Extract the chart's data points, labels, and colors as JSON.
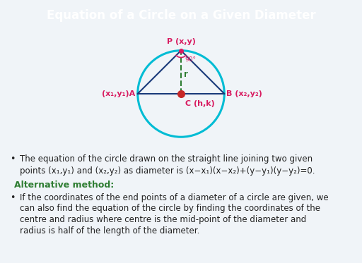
{
  "title": "Equation of a Circle on a Given Diameter",
  "title_bg": "#1a6ea8",
  "title_fg": "#ffffff",
  "circle_color": "#00bcd4",
  "label_color": "#d81b60",
  "line_color": "#1a3a7a",
  "radius_color": "#2e7d32",
  "alt_method_color": "#2e7d32",
  "bg_color": "#f0f4f8",
  "text_color": "#222222",
  "bullet_1_line1": "The equation of the circle drawn on the straight line joining two given",
  "bullet_1_line2": "points (x₁,y₁) and (x₂,y₂) as diameter is (x−x₁)(x−x₂)+(y−y₁)(y−y₂)=0.",
  "alt_method_label": "Alternative method:",
  "bullet_2_line1": "If the coordinates of the end points of a diameter of a circle are given, we",
  "bullet_2_line2": "can also find the equation of the circle by finding the coordinates of the",
  "bullet_2_line3": "centre and radius where centre is the mid-point of the diameter and",
  "bullet_2_line4": "radius is half of the length of the diameter."
}
